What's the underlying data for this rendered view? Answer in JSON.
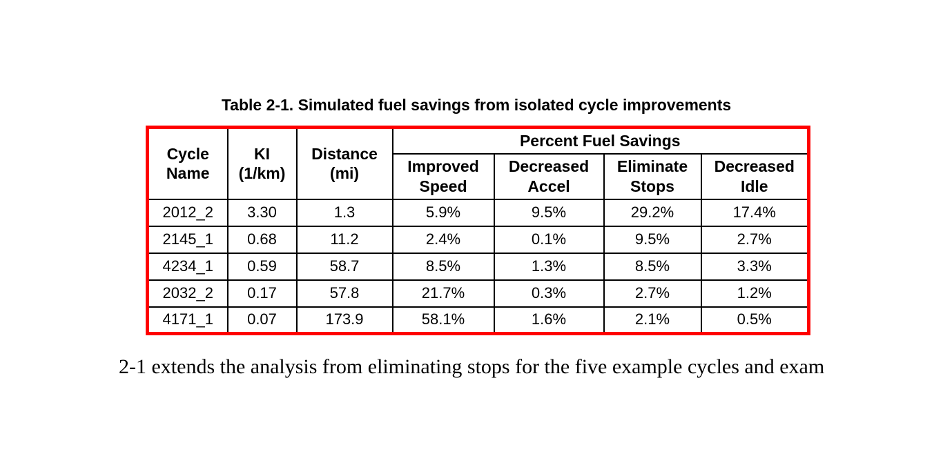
{
  "document": {
    "table_caption": "Table 2-1. Simulated fuel savings from isolated cycle improvements",
    "paragraph_text": "2-1 extends the analysis from eliminating stops for the five example cycles and exam"
  },
  "table": {
    "border_color": "#ff0000",
    "grid_color": "#000000",
    "group_header": "Percent Fuel Savings",
    "row_headers": [
      "Cycle\nName",
      "KI\n(1/km)",
      "Distance\n(mi)"
    ],
    "sub_headers": [
      "Improved\nSpeed",
      "Decreased\nAccel",
      "Eliminate\nStops",
      "Decreased\nIdle"
    ],
    "rows": [
      [
        "2012_2",
        "3.30",
        "1.3",
        "5.9%",
        "9.5%",
        "29.2%",
        "17.4%"
      ],
      [
        "2145_1",
        "0.68",
        "11.2",
        "2.4%",
        "0.1%",
        "9.5%",
        "2.7%"
      ],
      [
        "4234_1",
        "0.59",
        "58.7",
        "8.5%",
        "1.3%",
        "8.5%",
        "3.3%"
      ],
      [
        "2032_2",
        "0.17",
        "57.8",
        "21.7%",
        "0.3%",
        "2.7%",
        "1.2%"
      ],
      [
        "4171_1",
        "0.07",
        "173.9",
        "58.1%",
        "1.6%",
        "2.1%",
        "0.5%"
      ]
    ]
  }
}
